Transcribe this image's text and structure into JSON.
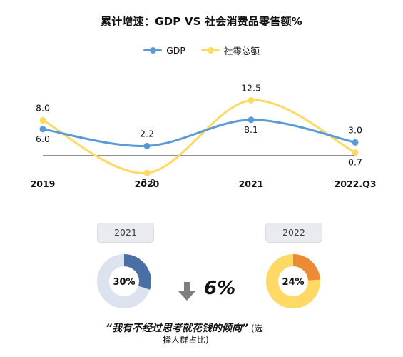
{
  "title": "累计增速：GDP VS 社会消费品零售额%",
  "chart_data": {
    "type": "line",
    "title": "累计增速：GDP VS 社会消费品零售额%",
    "categories": [
      "2019",
      "2020",
      "2021",
      "2022.Q3"
    ],
    "series": [
      {
        "name": "GDP",
        "values": [
          6.0,
          2.2,
          8.1,
          3.0
        ],
        "color": "#5b9bd5"
      },
      {
        "name": "社零总额",
        "values": [
          8.0,
          -3.9,
          12.5,
          0.7
        ],
        "color": "#ffd966"
      }
    ],
    "ylim": [
      -5,
      14
    ],
    "grid": false,
    "legend_position": "top-center",
    "smooth": true
  },
  "comparison": {
    "left": {
      "year": "2021",
      "percent": 30,
      "percent_label": "30%",
      "color": "#4a6fa5"
    },
    "right": {
      "year": "2022",
      "percent": 24,
      "percent_label": "24%",
      "color": "#ed8a35"
    },
    "change_label": "6%",
    "quote": "“我有不经过思考就花钱的倾向”",
    "note_line1": "(选",
    "note_line2": "择人群占比)"
  },
  "colors": {
    "donut_track_left": "#dde3ee",
    "donut_track_right": "#ffd966",
    "pill_bg": "#e9ebef",
    "arrow": "#7f7f7f"
  }
}
